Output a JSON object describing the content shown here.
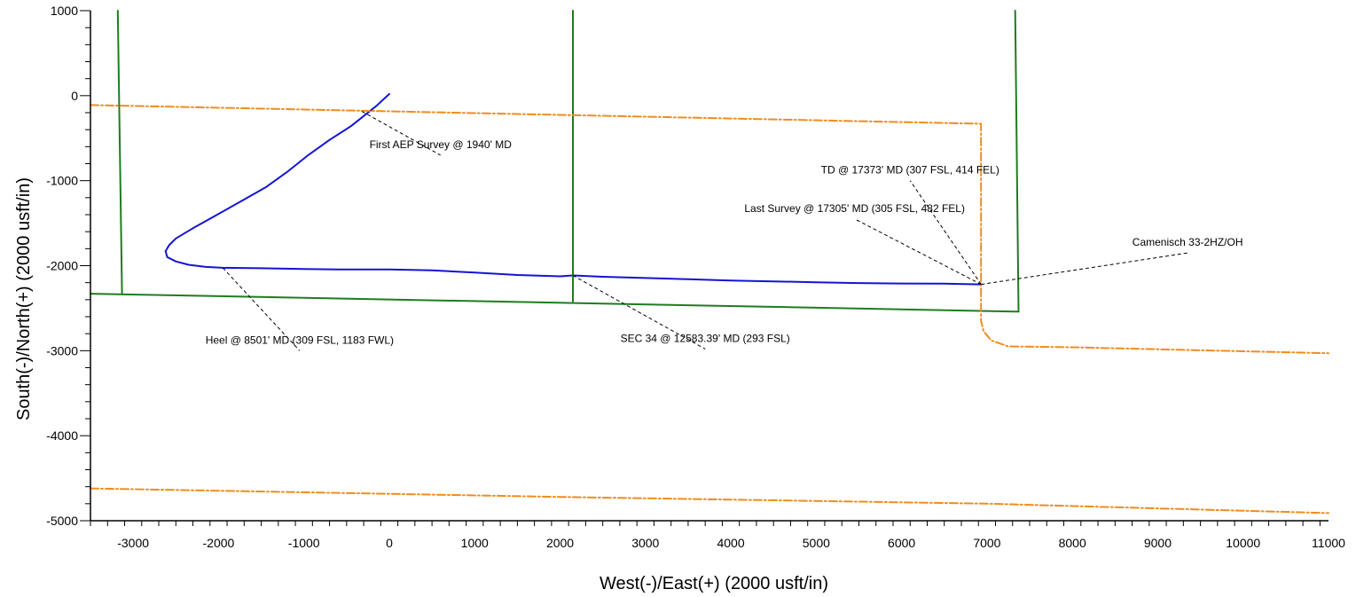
{
  "chart_data": {
    "type": "line",
    "xlabel": "West(-)/East(+)  (2000 usft/in)",
    "ylabel": "South(-)/North(+)  (2000 usft/in)",
    "xlim": [
      -3500,
      11000
    ],
    "ylim": [
      -5000,
      1000
    ],
    "xticks": [
      -3000,
      -2000,
      -1000,
      0,
      1000,
      2000,
      3000,
      4000,
      5000,
      6000,
      7000,
      8000,
      9000,
      10000,
      11000
    ],
    "yticks": [
      1000,
      0,
      -1000,
      -2000,
      -3000,
      -4000,
      -5000
    ],
    "grid": false,
    "colors": {
      "wellpath": "#1414d2",
      "section_lines": "#1e7d1e",
      "lease_lines": "#f08c1e",
      "annotation": "#000000"
    },
    "series": [
      {
        "name": "Camenisch  33-2HZ/OH",
        "role": "wellpath",
        "x": [
          0,
          -150,
          -300,
          -450,
          -700,
          -950,
          -1200,
          -1450,
          -1750,
          -2050,
          -2300,
          -2500,
          -2580,
          -2620,
          -2600,
          -2500,
          -2350,
          -2150,
          -1950,
          -1500,
          -1000,
          -500,
          0,
          500,
          1000,
          1500,
          2000,
          2150,
          2500,
          3000,
          3500,
          4000,
          4500,
          5000,
          5500,
          6000,
          6500,
          6932
        ],
        "y": [
          20,
          -120,
          -240,
          -360,
          -520,
          -700,
          -900,
          -1080,
          -1250,
          -1420,
          -1560,
          -1680,
          -1760,
          -1830,
          -1900,
          -1950,
          -1990,
          -2015,
          -2025,
          -2030,
          -2040,
          -2045,
          -2045,
          -2055,
          -2080,
          -2110,
          -2125,
          -2115,
          -2130,
          -2145,
          -2160,
          -2175,
          -2185,
          -2195,
          -2205,
          -2210,
          -2212,
          -2220
        ]
      },
      {
        "role": "section-line",
        "x": [
          -3180,
          -3130
        ],
        "y": [
          1000,
          -2330
        ]
      },
      {
        "role": "section-line",
        "x": [
          2150,
          2150
        ],
        "y": [
          1000,
          -2420
        ]
      },
      {
        "role": "section-line",
        "x": [
          7330,
          7370
        ],
        "y": [
          1000,
          -2540
        ]
      },
      {
        "role": "section-line",
        "x": [
          -3500,
          7370
        ],
        "y": [
          -2330,
          -2540
        ]
      },
      {
        "role": "lease-line",
        "x": [
          -3500,
          6930,
          6930,
          6960,
          7050,
          7250,
          8000,
          11000
        ],
        "y": [
          -110,
          -330,
          -2650,
          -2770,
          -2880,
          -2950,
          -2960,
          -3030
        ]
      },
      {
        "role": "lease-line",
        "x": [
          -3500,
          2000,
          7000,
          11000
        ],
        "y": [
          -4620,
          -4720,
          -4800,
          -4910
        ]
      }
    ],
    "annotations": [
      {
        "text": "First AEP Survey @ 1940' MD",
        "point": [
          -320,
          -185
        ],
        "label_at": [
          600,
          -700
        ]
      },
      {
        "text": "TD @ 17373' MD (307 FSL, 414 FEL)",
        "point": [
          6932,
          -2220
        ],
        "label_at": [
          6100,
          -1000
        ]
      },
      {
        "text": "Last Survey @ 17305' MD (305 FSL, 482 FEL)",
        "point": [
          6932,
          -2220
        ],
        "label_at": [
          5450,
          -1450
        ]
      },
      {
        "text": "Camenisch  33-2HZ/OH",
        "point": [
          6932,
          -2220
        ],
        "label_at": [
          9350,
          -1850
        ]
      },
      {
        "text": "Heel @ 8501' MD (309 FSL, 1183 FWL)",
        "point": [
          -1950,
          -2025
        ],
        "label_at": [
          -1050,
          -3000
        ]
      },
      {
        "text": "SEC 34 @ 12583.39' MD (293 FSL)",
        "point": [
          2150,
          -2115
        ],
        "label_at": [
          3700,
          -2980
        ]
      }
    ]
  }
}
